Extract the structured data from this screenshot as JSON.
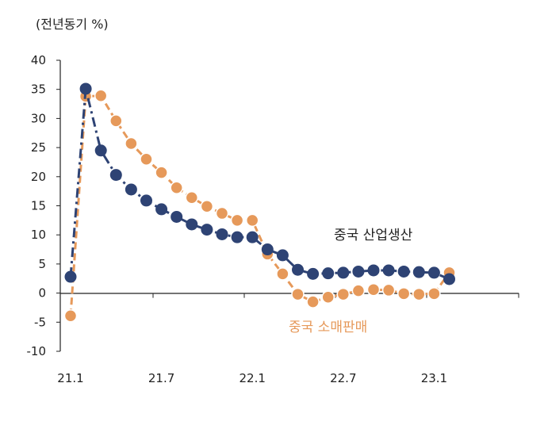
{
  "chart_data": {
    "type": "line",
    "unit_label": "(전년동기 %)",
    "ylim": [
      -10,
      40
    ],
    "yticks": [
      "40",
      "35",
      "30",
      "25",
      "20",
      "15",
      "10",
      "5",
      "0",
      "-5",
      "-10"
    ],
    "xtick_labels": [
      "21.1",
      "21.7",
      "22.1",
      "22.7",
      "23.1"
    ],
    "x": [
      "21.1",
      "21.2",
      "21.3",
      "21.4",
      "21.5",
      "21.6",
      "21.7",
      "21.8",
      "21.9",
      "21.10",
      "21.11",
      "21.12",
      "22.1",
      "22.2",
      "22.3",
      "22.4",
      "22.5",
      "22.6",
      "22.7",
      "22.8",
      "22.9",
      "22.10",
      "22.11",
      "22.12",
      "23.1",
      "23.2"
    ],
    "grid": false,
    "series": [
      {
        "name": "중국 산업생산",
        "color": "#2e4374",
        "line_style": "dash-dot",
        "values": [
          2.8,
          35.1,
          24.5,
          20.3,
          17.8,
          15.9,
          14.4,
          13.1,
          11.8,
          10.9,
          10.1,
          9.6,
          9.6,
          7.5,
          6.5,
          4.0,
          3.3,
          3.4,
          3.5,
          3.7,
          3.9,
          3.9,
          3.7,
          3.6,
          3.5,
          2.4
        ]
      },
      {
        "name": "중국 소매판매",
        "color": "#e6995a",
        "line_style": "dashed",
        "values": [
          -3.9,
          33.8,
          33.9,
          29.6,
          25.7,
          23.0,
          20.7,
          18.1,
          16.4,
          14.9,
          13.7,
          12.5,
          12.5,
          6.7,
          3.3,
          -0.2,
          -1.5,
          -0.7,
          -0.2,
          0.4,
          0.6,
          0.5,
          -0.1,
          -0.2,
          -0.1,
          3.5
        ]
      }
    ]
  }
}
